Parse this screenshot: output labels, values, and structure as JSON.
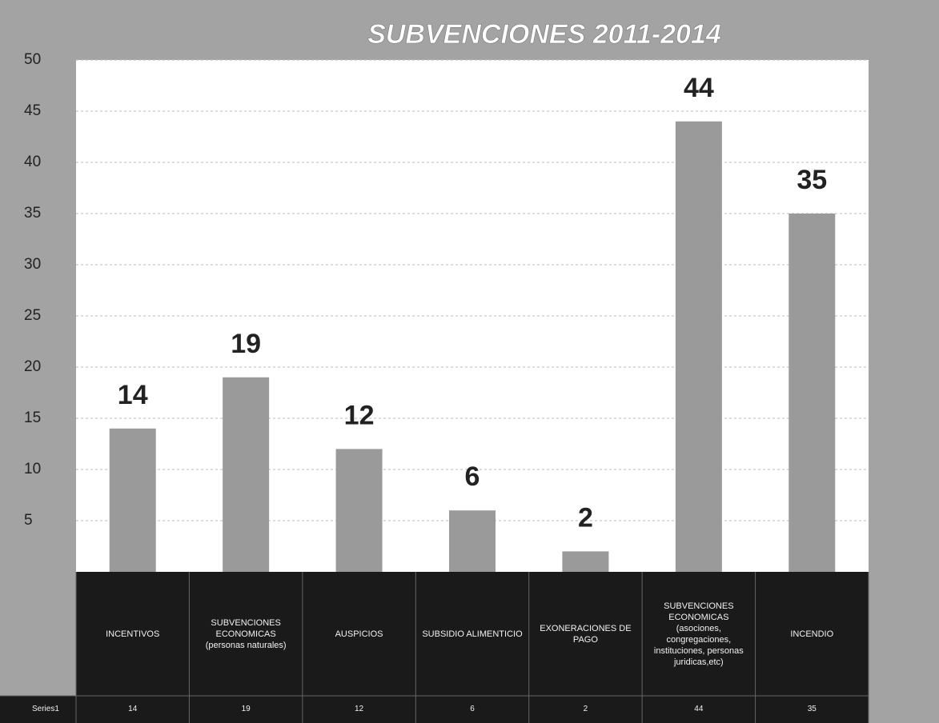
{
  "chart_data": {
    "type": "bar",
    "title": "SUBVENCIONES 2011-2014",
    "categories": [
      "INCENTIVOS",
      "SUBVENCIONES ECONOMICAS (personas naturales)",
      "AUSPICIOS",
      "SUBSIDIO ALIMENTICIO",
      "EXONERACIONES DE PAGO",
      "SUBVENCIONES ECONOMICAS (asociones, congregaciones, instituciones, personas juridicas,etc)",
      "INCENDIO"
    ],
    "series": [
      {
        "name": "Series1",
        "color": "#9a9a9a",
        "values": [
          14,
          19,
          12,
          6,
          2,
          44,
          35
        ]
      }
    ],
    "ylim": [
      0,
      50
    ],
    "yticks": [
      5,
      10,
      15,
      20,
      25,
      30,
      35,
      40,
      45,
      50
    ],
    "grid": true
  }
}
